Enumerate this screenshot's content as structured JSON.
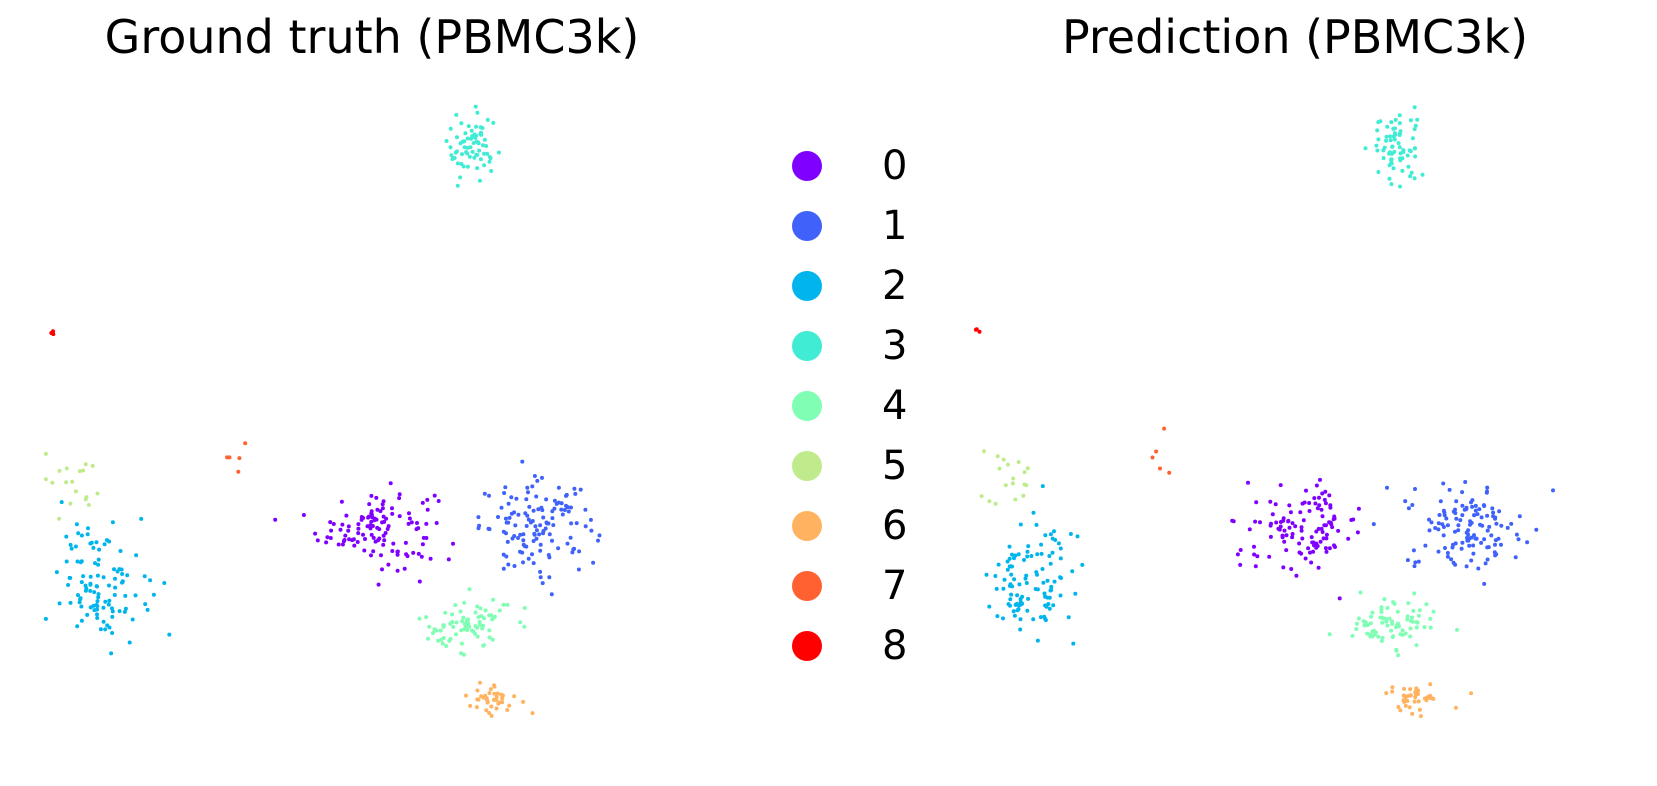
{
  "chart_data": [
    {
      "type": "scatter",
      "title": "Ground truth (PBMC3k)",
      "axes_visible": false,
      "clusters": [
        {
          "label": "0",
          "n": 120,
          "cx": 0.535,
          "cy": 0.3,
          "sx": 0.08,
          "sy": 0.055
        },
        {
          "label": "1",
          "n": 130,
          "cx": 0.8,
          "cy": 0.3,
          "sx": 0.08,
          "sy": 0.06
        },
        {
          "label": "2",
          "n": 110,
          "cx": 0.085,
          "cy": 0.21,
          "sx": 0.06,
          "sy": 0.08
        },
        {
          "label": "3",
          "n": 70,
          "cx": 0.69,
          "cy": 0.92,
          "sx": 0.035,
          "sy": 0.045
        },
        {
          "label": "4",
          "n": 80,
          "cx": 0.68,
          "cy": 0.14,
          "sx": 0.06,
          "sy": 0.04
        },
        {
          "label": "5",
          "n": 18,
          "cx": 0.04,
          "cy": 0.38,
          "sx": 0.04,
          "sy": 0.05
        },
        {
          "label": "6",
          "n": 40,
          "cx": 0.72,
          "cy": 0.02,
          "sx": 0.04,
          "sy": 0.02
        },
        {
          "label": "7",
          "n": 5,
          "cx": 0.3,
          "cy": 0.42,
          "sx": 0.03,
          "sy": 0.03
        },
        {
          "label": "8",
          "n": 3,
          "cx": 0.0,
          "cy": 0.62,
          "sx": 0.004,
          "sy": 0.003
        }
      ]
    },
    {
      "type": "scatter",
      "title": "Prediction (PBMC3k)",
      "axes_visible": false,
      "clusters": [
        {
          "label": "0",
          "n": 120,
          "cx": 0.535,
          "cy": 0.3,
          "sx": 0.08,
          "sy": 0.055
        },
        {
          "label": "1",
          "n": 130,
          "cx": 0.8,
          "cy": 0.3,
          "sx": 0.08,
          "sy": 0.06
        },
        {
          "label": "2",
          "n": 110,
          "cx": 0.085,
          "cy": 0.21,
          "sx": 0.06,
          "sy": 0.08
        },
        {
          "label": "3",
          "n": 70,
          "cx": 0.69,
          "cy": 0.92,
          "sx": 0.035,
          "sy": 0.045
        },
        {
          "label": "4",
          "n": 80,
          "cx": 0.68,
          "cy": 0.14,
          "sx": 0.06,
          "sy": 0.04
        },
        {
          "label": "5",
          "n": 18,
          "cx": 0.04,
          "cy": 0.38,
          "sx": 0.04,
          "sy": 0.05
        },
        {
          "label": "6",
          "n": 40,
          "cx": 0.72,
          "cy": 0.02,
          "sx": 0.04,
          "sy": 0.02
        },
        {
          "label": "7",
          "n": 5,
          "cx": 0.3,
          "cy": 0.42,
          "sx": 0.03,
          "sy": 0.03
        },
        {
          "label": "8",
          "n": 3,
          "cx": 0.0,
          "cy": 0.62,
          "sx": 0.004,
          "sy": 0.003
        }
      ]
    }
  ],
  "legend": {
    "items": [
      {
        "label": "0",
        "color": "#8000ff"
      },
      {
        "label": "1",
        "color": "#4062fa"
      },
      {
        "label": "2",
        "color": "#00b5eb"
      },
      {
        "label": "3",
        "color": "#40ecd4"
      },
      {
        "label": "4",
        "color": "#80ffb4"
      },
      {
        "label": "5",
        "color": "#c0eb8d"
      },
      {
        "label": "6",
        "color": "#ffb360"
      },
      {
        "label": "7",
        "color": "#ff6130"
      },
      {
        "label": "8",
        "color": "#ff0000"
      }
    ]
  }
}
